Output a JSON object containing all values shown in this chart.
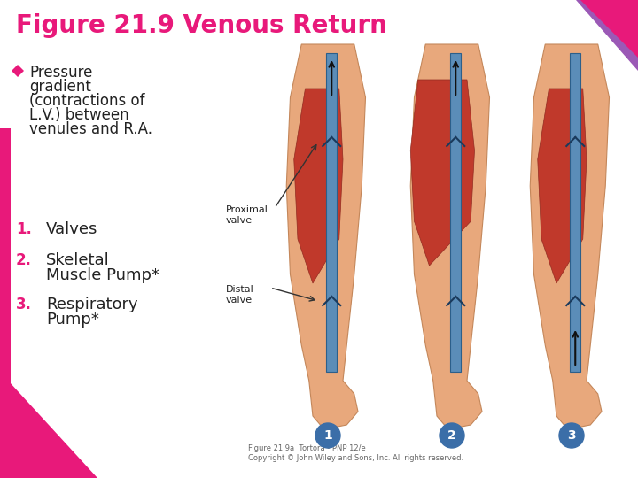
{
  "title": "Figure 21.9 Venous Return",
  "title_color": "#E8197A",
  "title_fontsize": 20,
  "bullet_color": "#E8197A",
  "bullet_text_line1": "Pressure",
  "bullet_text_line2": "gradient",
  "bullet_text_line3": "(contractions of",
  "bullet_text_line4": "L.V.) between",
  "bullet_text_line5": "venules and R.A.",
  "bullet_fontsize": 12,
  "item1_num": "1.",
  "item1_text": "Valves",
  "item2_num": "2.",
  "item2_text_line1": "Skeletal",
  "item2_text_line2": "Muscle Pump*",
  "item3_num": "3.",
  "item3_text_line1": "Respiratory",
  "item3_text_line2": "Pump*",
  "item_fontsize": 12,
  "item_num_color": "#E8197A",
  "label_proximal": "Proximal\nvalve",
  "label_distal": "Distal\nvalve",
  "label_fontsize": 8,
  "circle_color": "#3B6EA8",
  "circle_text_color": "#ffffff",
  "bg_color": "#ffffff",
  "accent_purple": "#9B59B6",
  "accent_pink": "#E8197A",
  "left_bar_color": "#E8197A",
  "footer_text": "Figure 21.9a  Tortora - PNP 12/e\nCopyright © John Wiley and Sons, Inc. All rights reserved.",
  "footer_fontsize": 6,
  "skin_color": "#E8A87C",
  "skin_light": "#F2C9A8",
  "muscle_red": "#C0392B",
  "muscle_dark": "#922B21",
  "vein_blue": "#5B8DB8",
  "vein_dark": "#2C5F8A"
}
